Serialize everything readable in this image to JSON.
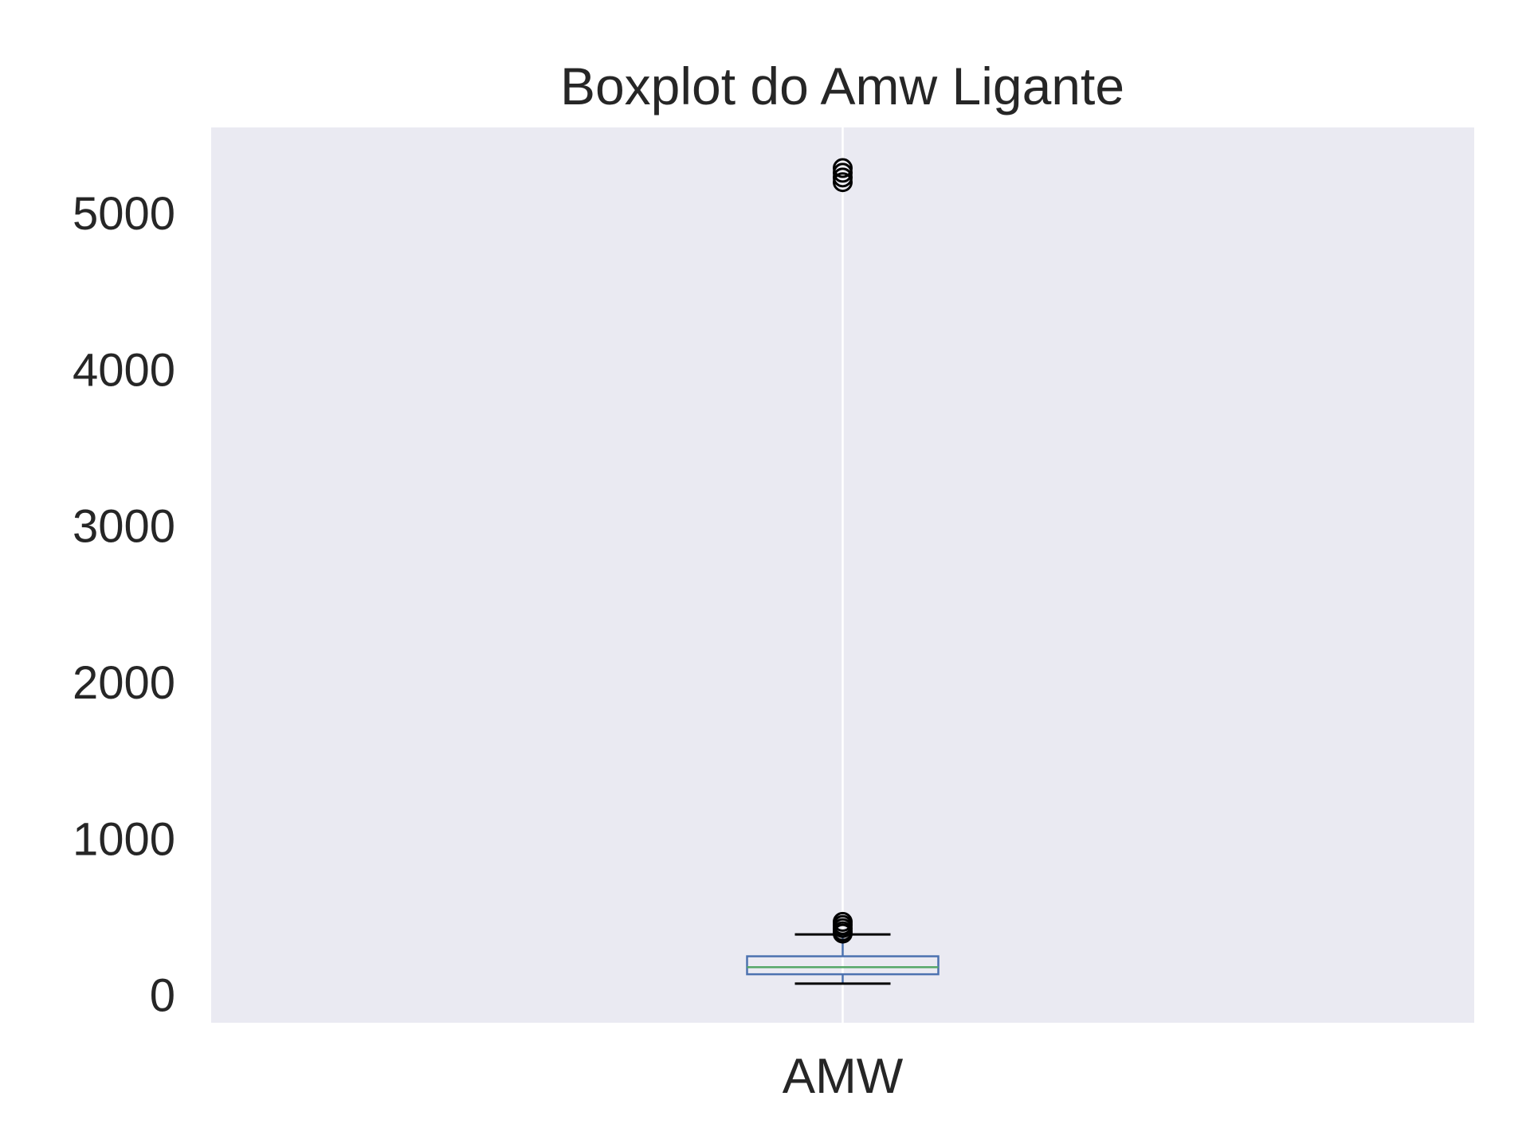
{
  "chart_data": {
    "type": "box",
    "title": "Boxplot do Amw Ligante",
    "xlabel": "",
    "ylabel": "",
    "categories": [
      "AMW"
    ],
    "ylim": [
      -175,
      5550
    ],
    "yticks": [
      0,
      1000,
      2000,
      3000,
      4000,
      5000
    ],
    "ytick_labels": [
      "0",
      "1000",
      "2000",
      "3000",
      "4000",
      "5000"
    ],
    "grid": true,
    "box": {
      "whisker_low": 75,
      "q1": 135,
      "median": 180,
      "q3": 250,
      "whisker_high": 390,
      "outliers": [
        395,
        410,
        430,
        450,
        470,
        5200,
        5230,
        5260,
        5290
      ]
    },
    "colors": {
      "plot_background": "#eaeaf2",
      "grid": "#ffffff",
      "box": "#4c72b0",
      "median": "#55a868",
      "whisker_cap": "#000000",
      "outlier_edge": "#000000",
      "text": "#262626"
    }
  }
}
